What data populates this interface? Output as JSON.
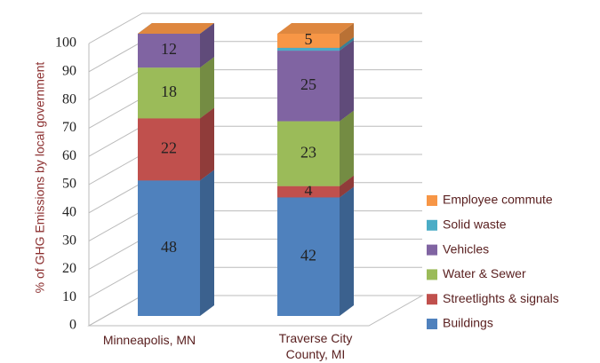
{
  "chart_data": {
    "type": "bar",
    "stacked": true,
    "y_label": "% of GHG Emissions by local government",
    "categories": [
      "Minneapolis, MN",
      "Traverse City County, MI"
    ],
    "series": [
      {
        "name": "Buildings",
        "color": "#4f81bd",
        "values": [
          48,
          42
        ]
      },
      {
        "name": "Streetlights & signals",
        "color": "#c0504d",
        "values": [
          22,
          4
        ]
      },
      {
        "name": "Water & Sewer",
        "color": "#9bbb59",
        "values": [
          18,
          23
        ]
      },
      {
        "name": "Vehicles",
        "color": "#8064a2",
        "values": [
          12,
          25
        ]
      },
      {
        "name": "Solid waste",
        "color": "#4bacc6",
        "values": [
          0,
          1
        ]
      },
      {
        "name": "Employee commute",
        "color": "#f79646",
        "values": [
          0,
          5
        ]
      }
    ],
    "ylim": [
      0,
      100
    ],
    "yticks": [
      0,
      10,
      20,
      30,
      40,
      50,
      60,
      70,
      80,
      90,
      100
    ],
    "grid": true
  }
}
